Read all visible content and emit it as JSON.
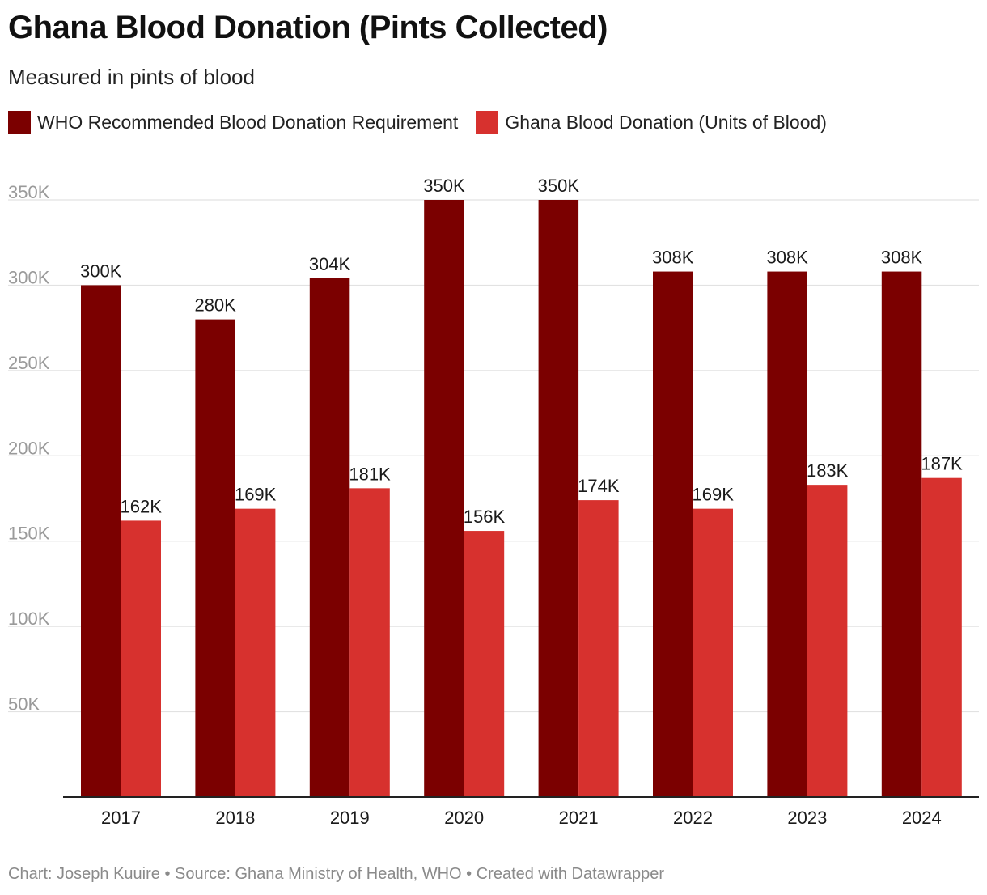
{
  "title": "Ghana Blood Donation (Pints Collected)",
  "subtitle": "Measured in pints of blood",
  "footer": {
    "credit": "Chart: Joseph Kuuire",
    "source": "Source: Ghana Ministry of Health, WHO",
    "tool": "Created with Datawrapper",
    "separator": " • "
  },
  "chart_data": {
    "type": "bar",
    "categories": [
      "2017",
      "2018",
      "2019",
      "2020",
      "2021",
      "2022",
      "2023",
      "2024"
    ],
    "series": [
      {
        "name": "WHO Recommended Blood Donation Requirement",
        "color": "#7b0000",
        "values": [
          300000,
          280000,
          304000,
          350000,
          350000,
          308000,
          308000,
          308000
        ],
        "labels": [
          "300K",
          "280K",
          "304K",
          "350K",
          "350K",
          "308K",
          "308K",
          "308K"
        ]
      },
      {
        "name": "Ghana Blood Donation (Units of Blood)",
        "color": "#d7312e",
        "values": [
          162000,
          169000,
          181000,
          156000,
          174000,
          169000,
          183000,
          187000
        ],
        "labels": [
          "162K",
          "169K",
          "181K",
          "156K",
          "174K",
          "169K",
          "183K",
          "187K"
        ]
      }
    ],
    "ylim": [
      0,
      350000
    ],
    "yticks": [
      50000,
      100000,
      150000,
      200000,
      250000,
      300000,
      350000
    ],
    "ytick_labels": [
      "50K",
      "100K",
      "150K",
      "200K",
      "250K",
      "300K",
      "350K"
    ],
    "grid": true,
    "legend_position": "top-left"
  }
}
